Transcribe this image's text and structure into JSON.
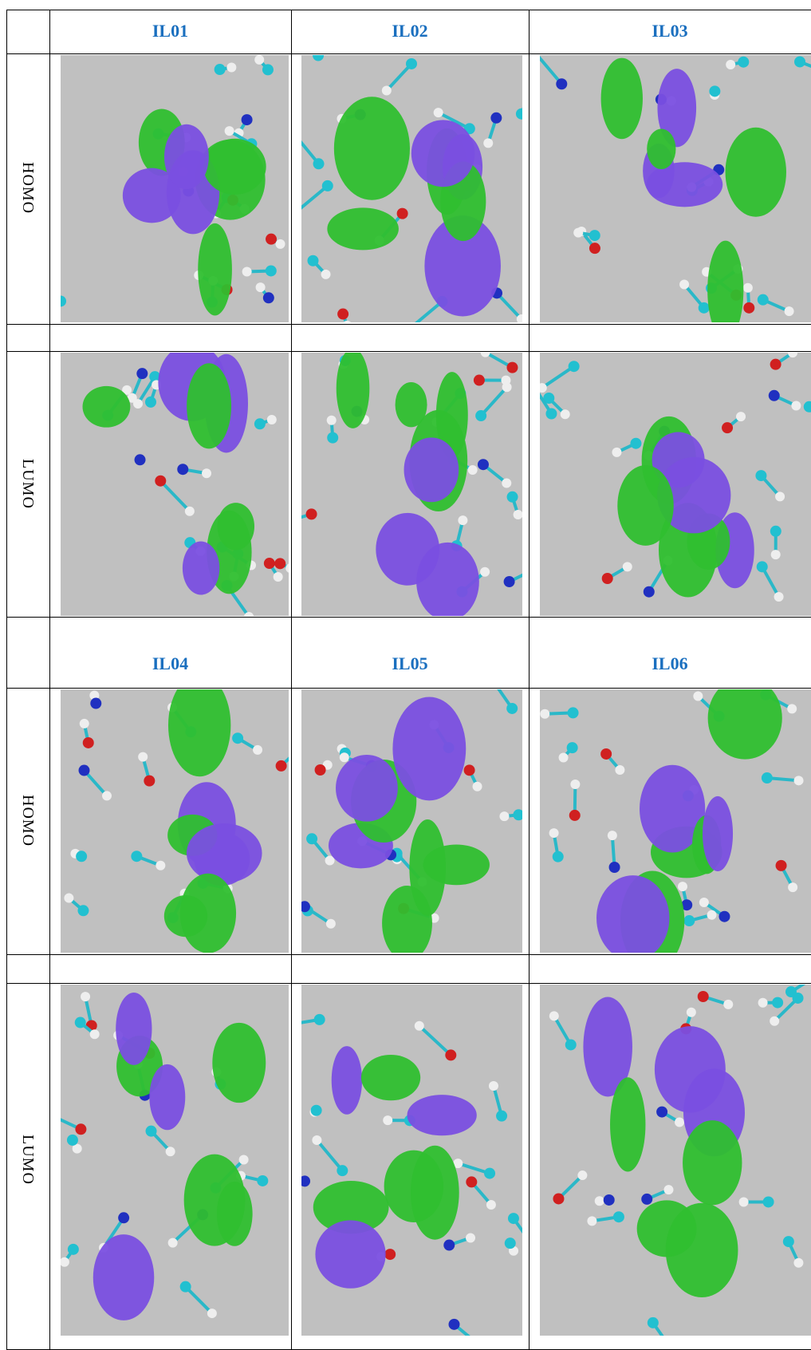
{
  "table": {
    "groups": [
      {
        "headers": [
          "IL01",
          "IL02",
          "IL03"
        ],
        "rows": [
          "HOMO",
          "LUMO"
        ]
      },
      {
        "headers": [
          "IL04",
          "IL05",
          "IL06"
        ],
        "rows": [
          "HOMO",
          "LUMO"
        ]
      }
    ]
  }
}
